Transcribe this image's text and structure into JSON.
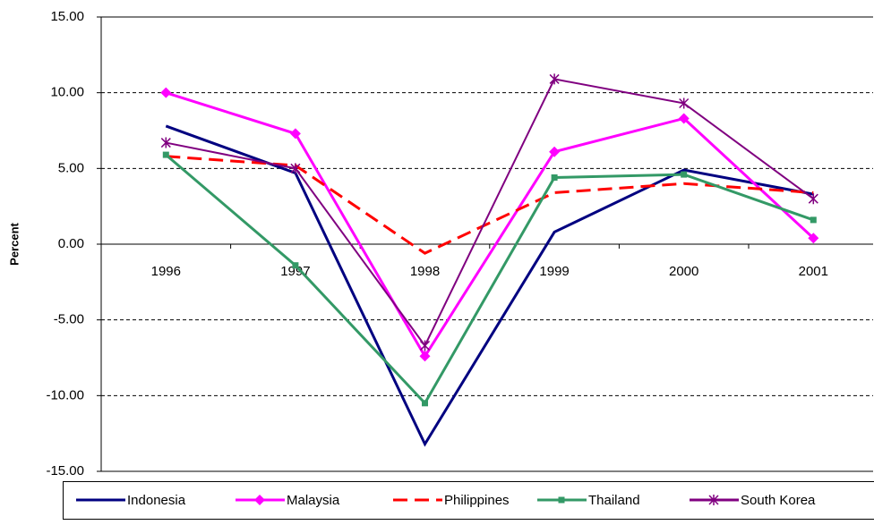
{
  "chart_data": {
    "type": "line",
    "y_label": "Percent",
    "categories": [
      "1996",
      "1997",
      "1998",
      "1999",
      "2000",
      "2001"
    ],
    "series": [
      {
        "name": "Indonesia",
        "color": "#000080",
        "marker": "none",
        "dashed": false,
        "values": [
          7.8,
          4.7,
          -13.2,
          0.8,
          4.9,
          3.3
        ]
      },
      {
        "name": "Malaysia",
        "color": "#ff00ff",
        "marker": "diamond",
        "dashed": false,
        "values": [
          10.0,
          7.3,
          -7.4,
          6.1,
          8.3,
          0.4
        ]
      },
      {
        "name": "Philippines",
        "color": "#ff0000",
        "marker": "none",
        "dashed": true,
        "values": [
          5.8,
          5.2,
          -0.6,
          3.4,
          4.0,
          3.4
        ]
      },
      {
        "name": "Thailand",
        "color": "#339966",
        "marker": "square",
        "dashed": false,
        "values": [
          5.9,
          -1.4,
          -10.5,
          4.4,
          4.6,
          1.6
        ]
      },
      {
        "name": "South Korea",
        "color": "#800080",
        "marker": "star",
        "dashed": false,
        "values": [
          6.7,
          5.0,
          -6.7,
          10.9,
          9.3,
          3.0
        ]
      }
    ],
    "ylim": [
      -15,
      15
    ],
    "yticks": [
      {
        "value": -15,
        "label": "-15.00"
      },
      {
        "value": -10,
        "label": "-10.00"
      },
      {
        "value": -5,
        "label": "-5.00"
      },
      {
        "value": 0,
        "label": "0.00"
      },
      {
        "value": 5,
        "label": "5.00"
      },
      {
        "value": 10,
        "label": "10.00"
      },
      {
        "value": 15,
        "label": "15.00"
      }
    ],
    "grid": true,
    "legend": "bottom"
  }
}
